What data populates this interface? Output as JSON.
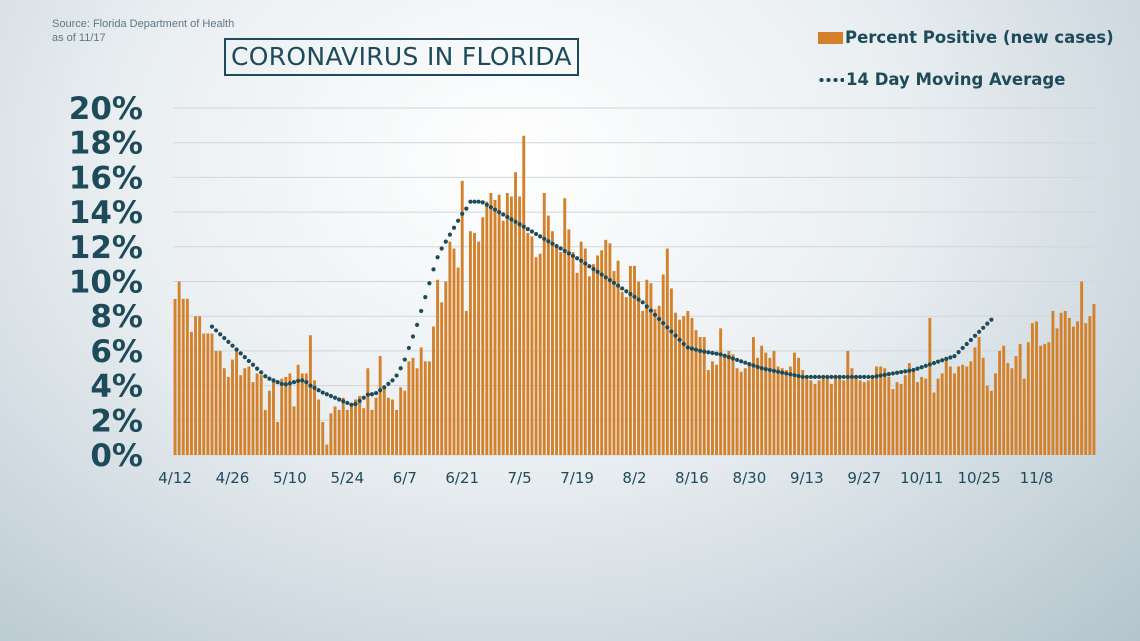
{
  "source": {
    "line1": "Source: Florida Department of Health",
    "line2": "as of 11/17"
  },
  "colors": {
    "bar": "#d3812b",
    "avg": "#1d4b5a",
    "text": "#1d4b5a",
    "grid": "#d0d6da"
  },
  "chart_data": {
    "type": "bar",
    "title": "CORONAVIRUS IN FLORIDA",
    "xlabel": "",
    "ylabel": "",
    "ylim": [
      0,
      20
    ],
    "yticks": [
      "0%",
      "2%",
      "4%",
      "6%",
      "8%",
      "10%",
      "12%",
      "14%",
      "16%",
      "18%",
      "20%"
    ],
    "xticks": [
      "4/12",
      "4/26",
      "5/10",
      "5/24",
      "6/7",
      "6/21",
      "7/5",
      "7/19",
      "8/2",
      "8/16",
      "8/30",
      "9/13",
      "9/27",
      "10/11",
      "10/25",
      "11/8"
    ],
    "grid": true,
    "legend_position": "top-right",
    "series": [
      {
        "name": "Percent Positive (new cases)",
        "type": "bar",
        "start_date": "4/12",
        "values": [
          9.0,
          10.0,
          9.0,
          9.0,
          7.1,
          8.0,
          8.0,
          7.0,
          7.0,
          7.0,
          6.0,
          6.0,
          5.0,
          4.5,
          5.5,
          6.0,
          4.6,
          5.0,
          5.1,
          4.2,
          4.7,
          4.6,
          2.6,
          3.7,
          4.3,
          1.9,
          4.4,
          4.5,
          4.7,
          2.8,
          5.2,
          4.7,
          4.7,
          6.9,
          4.3,
          3.2,
          1.9,
          0.6,
          2.4,
          2.8,
          2.6,
          3.3,
          2.6,
          2.8,
          3.2,
          3.4,
          2.7,
          5.0,
          2.6,
          3.3,
          5.7,
          4.0,
          3.3,
          3.2,
          2.6,
          3.9,
          3.7,
          5.4,
          5.6,
          5.0,
          6.2,
          5.4,
          5.4,
          7.4,
          10.1,
          8.8,
          10.0,
          12.3,
          11.9,
          10.8,
          15.8,
          8.3,
          12.9,
          12.8,
          12.3,
          13.7,
          14.6,
          15.1,
          14.7,
          15.0,
          13.5,
          15.1,
          14.9,
          16.3,
          14.9,
          18.4,
          12.8,
          12.6,
          11.4,
          11.6,
          15.1,
          13.8,
          12.9,
          12.0,
          11.7,
          14.8,
          13.0,
          11.7,
          10.5,
          12.3,
          11.9,
          10.3,
          11.0,
          11.5,
          11.8,
          12.4,
          12.2,
          10.6,
          11.2,
          9.4,
          9.1,
          10.9,
          10.9,
          10.0,
          8.3,
          10.1,
          9.9,
          8.4,
          8.6,
          10.4,
          11.9,
          9.6,
          8.2,
          7.8,
          8.0,
          8.3,
          7.9,
          7.2,
          6.8,
          6.8,
          4.9,
          5.4,
          5.2,
          7.3,
          5.8,
          6.0,
          5.8,
          5.0,
          4.8,
          5.0,
          5.3,
          6.8,
          5.6,
          6.3,
          5.9,
          5.6,
          6.0,
          5.1,
          5.0,
          4.9,
          5.1,
          5.9,
          5.6,
          4.9,
          4.4,
          4.3,
          4.1,
          4.3,
          4.5,
          4.5,
          4.1,
          4.6,
          4.6,
          4.3,
          6.0,
          5.0,
          4.6,
          4.3,
          4.2,
          4.3,
          4.4,
          5.1,
          5.1,
          5.0,
          4.5,
          3.8,
          4.2,
          4.1,
          4.6,
          5.3,
          4.8,
          4.2,
          4.5,
          4.4,
          7.9,
          3.6,
          4.4,
          4.7,
          5.5,
          5.1,
          4.7,
          5.1,
          5.2,
          5.1,
          5.4,
          6.2,
          6.8,
          5.6,
          4.0,
          3.7,
          4.7,
          6.0,
          6.3,
          5.3,
          5.0,
          5.7,
          6.4,
          4.4,
          6.5,
          7.6,
          7.7,
          6.3,
          6.4,
          6.5,
          8.3,
          7.3,
          8.2,
          8.3,
          7.9,
          7.4,
          7.7,
          10.0,
          7.6,
          8.0,
          8.7
        ]
      },
      {
        "name": "14 Day Moving Average",
        "type": "line",
        "style": "dotted",
        "start_index": 9,
        "values": [
          7.4,
          7.18,
          6.96,
          6.74,
          6.52,
          6.3,
          6.08,
          5.86,
          5.64,
          5.42,
          5.2,
          4.98,
          4.76,
          4.54,
          4.4,
          4.3,
          4.2,
          4.1,
          4.07,
          4.13,
          4.2,
          4.27,
          4.3,
          4.2,
          4.0,
          3.87,
          3.73,
          3.6,
          3.5,
          3.4,
          3.3,
          3.2,
          3.1,
          3.0,
          2.9,
          2.94,
          3.12,
          3.3,
          3.48,
          3.5,
          3.57,
          3.73,
          3.9,
          4.1,
          4.3,
          4.58,
          5.0,
          5.5,
          6.17,
          6.83,
          7.5,
          8.3,
          9.1,
          9.9,
          10.7,
          11.4,
          11.9,
          12.3,
          12.7,
          13.1,
          13.5,
          13.9,
          14.2,
          14.6,
          14.6,
          14.6,
          14.56,
          14.42,
          14.28,
          14.14,
          14.0,
          13.86,
          13.72,
          13.58,
          13.44,
          13.3,
          13.16,
          13.02,
          12.88,
          12.74,
          12.6,
          12.46,
          12.32,
          12.18,
          12.04,
          11.9,
          11.76,
          11.62,
          11.48,
          11.34,
          11.2,
          11.04,
          10.88,
          10.72,
          10.56,
          10.4,
          10.24,
          10.08,
          9.92,
          9.76,
          9.6,
          9.44,
          9.28,
          9.12,
          8.96,
          8.8,
          8.56,
          8.32,
          8.08,
          7.84,
          7.6,
          7.36,
          7.12,
          6.88,
          6.64,
          6.4,
          6.2,
          6.13,
          6.07,
          6.0,
          5.96,
          5.92,
          5.88,
          5.84,
          5.8,
          5.72,
          5.64,
          5.56,
          5.48,
          5.4,
          5.32,
          5.24,
          5.16,
          5.08,
          5.0,
          4.95,
          4.9,
          4.85,
          4.8,
          4.75,
          4.7,
          4.65,
          4.6,
          4.55,
          4.5,
          4.5,
          4.5,
          4.5,
          4.5,
          4.5,
          4.5,
          4.5,
          4.5,
          4.5,
          4.5,
          4.5,
          4.5,
          4.5,
          4.5,
          4.5,
          4.5,
          4.5,
          4.54,
          4.58,
          4.62,
          4.66,
          4.7,
          4.74,
          4.78,
          4.82,
          4.86,
          4.9,
          4.98,
          5.06,
          5.14,
          5.22,
          5.3,
          5.38,
          5.46,
          5.54,
          5.62,
          5.7,
          5.93,
          6.17,
          6.4,
          6.63,
          6.87,
          7.1,
          7.33,
          7.57,
          7.8
        ]
      }
    ]
  }
}
